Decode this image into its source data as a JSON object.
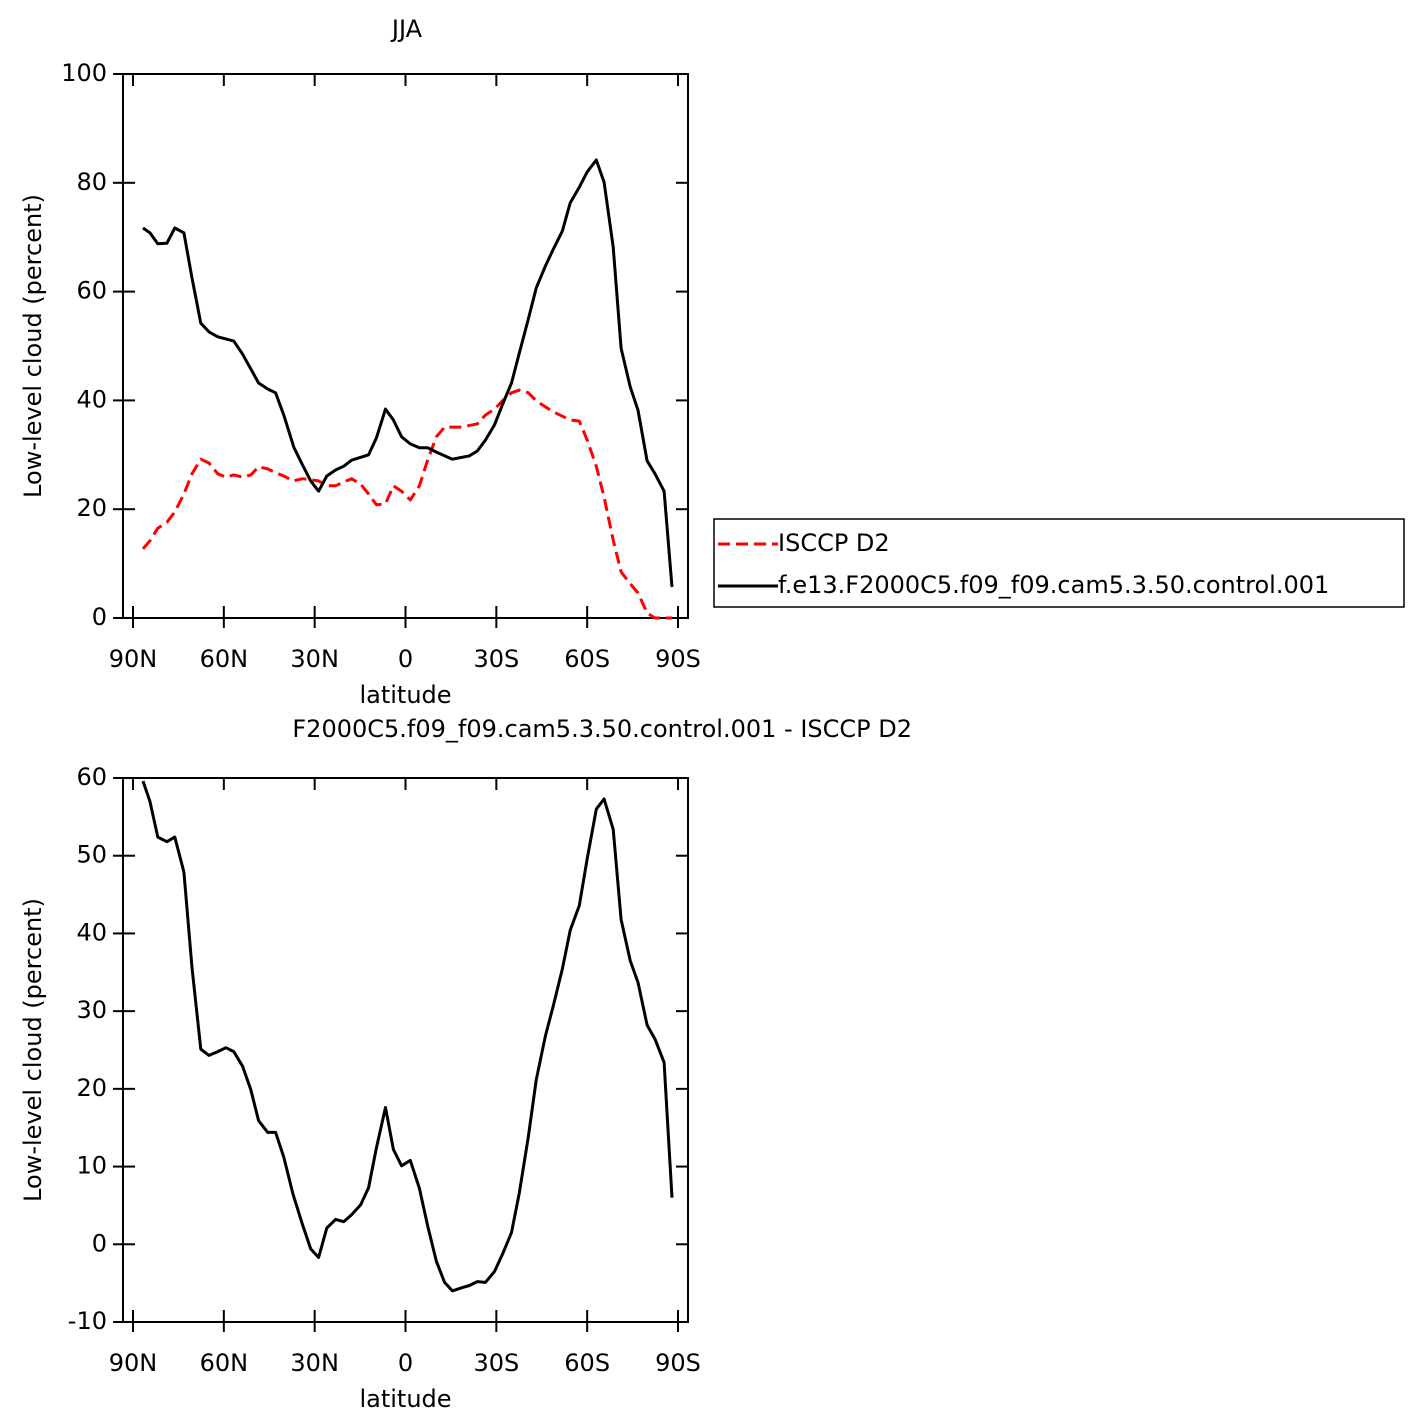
{
  "chart_data": [
    {
      "type": "line",
      "title": "JJA",
      "xlabel": "latitude",
      "ylabel": "Low-level cloud (percent)",
      "xlim": [
        93.3,
        -93.3
      ],
      "ylim": [
        0,
        100
      ],
      "xticks": [
        {
          "value": 90,
          "label": "90N"
        },
        {
          "value": 60,
          "label": "60N"
        },
        {
          "value": 30,
          "label": "30N"
        },
        0,
        {
          "value": -30,
          "label": "30S"
        },
        {
          "value": -60,
          "label": "60S"
        },
        {
          "value": -90,
          "label": "90S"
        }
      ],
      "yticks": [
        0,
        20,
        40,
        60,
        80,
        100
      ],
      "legend": "right",
      "series": [
        {
          "name": "ISCCP D2",
          "color": "#ff0000",
          "style": "dashed",
          "x": [
            86.7,
            84.4,
            81.8,
            78.8,
            76.2,
            73.2,
            70.5,
            67.6,
            64.9,
            62.0,
            59.3,
            56.7,
            53.8,
            51.1,
            48.5,
            45.5,
            42.9,
            40.2,
            37.2,
            34.0,
            31.3,
            28.7,
            26.0,
            23.1,
            20.4,
            17.8,
            14.8,
            12.2,
            9.6,
            6.6,
            4.0,
            1.3,
            -1.6,
            -4.6,
            -7.3,
            -10.2,
            -12.9,
            -15.5,
            -18.5,
            -23.7,
            -26.4,
            -29.4,
            -32.0,
            -35.0,
            -37.6,
            -40.6,
            -43.2,
            -46.2,
            -48.8,
            -51.8,
            -54.4,
            -57.4,
            -60.0,
            -63.0,
            -65.6,
            -68.6,
            -71.2,
            -74.2,
            -76.8,
            -79.8,
            -82.4,
            -85.4,
            -88.0
          ],
          "values": [
            12.7,
            14.2,
            16.5,
            17.6,
            19.5,
            22.8,
            26.5,
            29.2,
            28.5,
            26.5,
            25.9,
            26.3,
            25.9,
            26.3,
            27.8,
            27.4,
            26.7,
            26.1,
            25.2,
            25.6,
            25.4,
            25.2,
            24.3,
            24.3,
            25.0,
            25.6,
            24.6,
            22.8,
            20.8,
            21.0,
            24.3,
            23.3,
            21.7,
            24.3,
            29.0,
            33.3,
            35.1,
            35.1,
            35.1,
            35.7,
            37.3,
            38.4,
            39.9,
            41.4,
            41.9,
            41.4,
            39.9,
            38.8,
            37.9,
            37.1,
            36.4,
            36.2,
            32.7,
            27.9,
            22.2,
            14.3,
            8.5,
            6.3,
            4.6,
            0.9,
            0,
            0,
            0
          ]
        },
        {
          "name": "f.e13.F2000C5.f09_f09.cam5.3.50.control.001",
          "color": "#000000",
          "style": "solid",
          "x": [
            86.7,
            84.4,
            81.8,
            78.8,
            76.2,
            73.2,
            70.5,
            67.6,
            64.9,
            62.0,
            56.7,
            53.8,
            48.5,
            45.5,
            42.9,
            40.2,
            36.9,
            34.0,
            31.3,
            28.7,
            26.0,
            23.1,
            20.4,
            17.8,
            12.2,
            9.6,
            6.6,
            4.0,
            1.3,
            -1.6,
            -4.6,
            -7.3,
            -10.2,
            -15.5,
            -21.1,
            -23.7,
            -26.4,
            -29.4,
            -32.0,
            -35.0,
            -37.6,
            -40.6,
            -43.2,
            -46.2,
            -48.8,
            -51.8,
            -54.4,
            -57.4,
            -60.0,
            -63.0,
            -65.6,
            -68.6,
            -71.2,
            -74.2,
            -76.8,
            -79.8,
            -82.4,
            -85.4,
            -88.0
          ],
          "values": [
            71.7,
            70.8,
            68.8,
            68.9,
            71.7,
            70.8,
            62.5,
            54.2,
            52.6,
            51.7,
            50.9,
            48.5,
            43.2,
            42.1,
            41.4,
            37.3,
            31.4,
            28.1,
            25.2,
            23.3,
            26.1,
            27.2,
            27.9,
            29.0,
            30.0,
            33.1,
            38.4,
            36.4,
            33.3,
            32.0,
            31.3,
            31.3,
            30.5,
            29.2,
            29.8,
            30.7,
            32.7,
            35.5,
            39.2,
            43.2,
            48.7,
            55.0,
            60.7,
            64.7,
            67.8,
            71.1,
            76.3,
            79.2,
            82.0,
            84.2,
            80.1,
            68.2,
            49.6,
            42.5,
            38.2,
            28.9,
            26.5,
            23.3,
            5.7
          ]
        }
      ]
    },
    {
      "type": "line",
      "title": "F2000C5.f09_f09.cam5.3.50.control.001 - ISCCP D2",
      "xlabel": "latitude",
      "ylabel": "Low-level cloud (percent)",
      "xlim": [
        93.3,
        -93.3
      ],
      "ylim": [
        -10,
        60
      ],
      "xticks": [
        {
          "value": 90,
          "label": "90N"
        },
        {
          "value": 60,
          "label": "60N"
        },
        {
          "value": 30,
          "label": "30N"
        },
        0,
        {
          "value": -30,
          "label": "30S"
        },
        {
          "value": -60,
          "label": "60S"
        },
        {
          "value": -90,
          "label": "90S"
        }
      ],
      "yticks": [
        -10,
        0,
        10,
        20,
        30,
        40,
        50,
        60
      ],
      "color": "#000000",
      "x": [
        86.7,
        84.4,
        81.8,
        78.8,
        76.2,
        73.2,
        70.5,
        67.6,
        64.9,
        62.0,
        59.3,
        56.7,
        53.8,
        51.1,
        48.5,
        45.5,
        42.9,
        40.2,
        37.2,
        34.0,
        31.3,
        28.7,
        26.0,
        23.1,
        20.4,
        17.8,
        14.8,
        12.2,
        9.6,
        6.6,
        4.0,
        1.3,
        -1.6,
        -4.6,
        -7.3,
        -10.2,
        -12.9,
        -15.5,
        -18.5,
        -21.1,
        -23.7,
        -26.4,
        -29.4,
        -32.0,
        -35.0,
        -37.6,
        -40.6,
        -43.2,
        -46.2,
        -48.8,
        -51.8,
        -54.4,
        -57.4,
        -60.0,
        -63.0,
        -65.6,
        -68.6,
        -71.2,
        -74.2,
        -76.8,
        -79.8,
        -82.4,
        -85.4,
        -88.0
      ],
      "values": [
        59.6,
        57.0,
        52.4,
        51.8,
        52.4,
        47.9,
        35.6,
        25.1,
        24.3,
        24.8,
        25.3,
        24.8,
        22.9,
        19.9,
        15.9,
        14.4,
        14.4,
        11.2,
        6.5,
        2.5,
        -0.6,
        -1.7,
        2.1,
        3.2,
        2.9,
        3.8,
        5.1,
        7.3,
        12.4,
        17.6,
        12.2,
        10.1,
        10.8,
        7.2,
        2.4,
        -2.2,
        -4.9,
        -6.0,
        -5.6,
        -5.3,
        -4.8,
        -4.9,
        -3.5,
        -1.3,
        1.5,
        6.6,
        13.9,
        21.2,
        26.8,
        30.7,
        35.4,
        40.4,
        43.6,
        49.6,
        56.0,
        57.3,
        53.4,
        41.8,
        36.5,
        33.7,
        28.2,
        26.4,
        23.4,
        6.0
      ]
    }
  ]
}
